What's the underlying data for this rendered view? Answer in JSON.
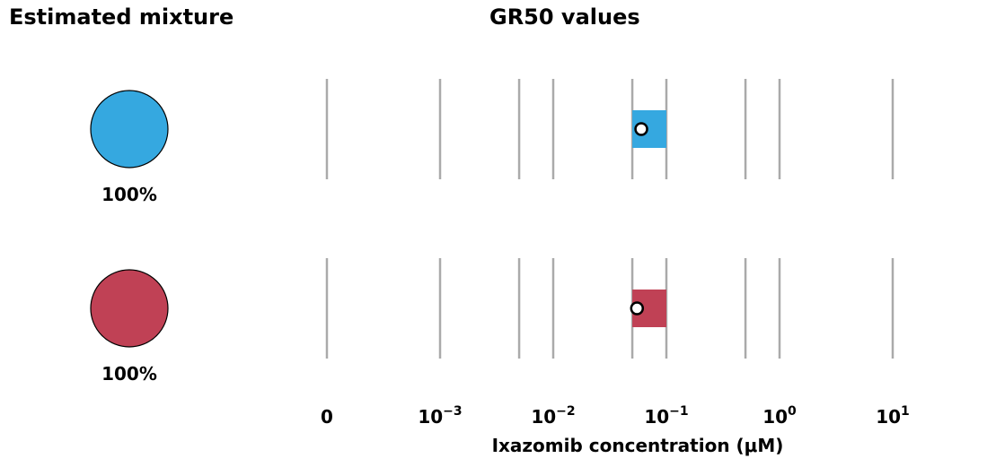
{
  "headings": {
    "left": "Estimated mixture",
    "right": "GR50 values"
  },
  "chart_data": {
    "type": "scatter",
    "xscale": "log",
    "xlabel": "Ixazomib  concentration  (μM)",
    "grid": "vertical",
    "tick_labels": [
      {
        "base": "0",
        "exp": ""
      },
      {
        "base": "10",
        "exp": "−3"
      },
      {
        "base": "10",
        "exp": "−2"
      },
      {
        "base": "10",
        "exp": "−1"
      },
      {
        "base": "10",
        "exp": "0"
      },
      {
        "base": "10",
        "exp": "1"
      }
    ],
    "series": [
      {
        "color": "#35a8e0",
        "mixture_percent_label": "100%",
        "mixture_fraction": 1.0,
        "gr50": 0.06,
        "gr50_interval": [
          0.05,
          0.1
        ]
      },
      {
        "color": "#c04155",
        "mixture_percent_label": "100%",
        "mixture_fraction": 1.0,
        "gr50": 0.055,
        "gr50_interval": [
          0.05,
          0.1
        ]
      }
    ]
  }
}
